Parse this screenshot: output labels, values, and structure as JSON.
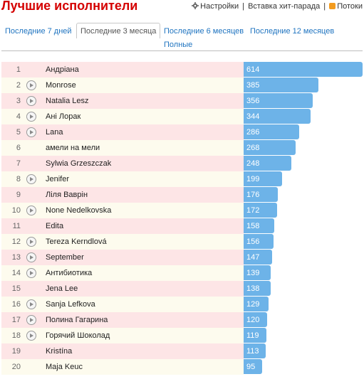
{
  "header": {
    "title": "Лучшие исполнители",
    "settings_label": "Настройки",
    "embed_label": "Вставка хит-парада",
    "feeds_label": "Потоки",
    "separator": "|"
  },
  "tabs": [
    {
      "label": "Последние 7 дней",
      "active": false
    },
    {
      "label": "Последние 3 месяца",
      "active": true
    },
    {
      "label": "Последние 6 месяцев",
      "active": false
    },
    {
      "label": "Последние 12 месяцев",
      "active": false
    },
    {
      "label": "Полные",
      "active": false
    }
  ],
  "colors": {
    "title": "#d40000",
    "link": "#1f74c0",
    "bar": "#6db3e8",
    "row_odd": "#fde5e6",
    "row_even": "#fdfbee"
  },
  "chart_data": {
    "type": "bar",
    "orientation": "horizontal",
    "categories": [
      "Андріана",
      "Monrose",
      "Natalia Lesz",
      "Ані Лорак",
      "Lana",
      "амели на мели",
      "Sylwia Grzeszczak",
      "Jenifer",
      "Ліля Ваврін",
      "None Nedelkovska",
      "Edita",
      "Tereza Kerndlová",
      "September",
      "Антибиотика",
      "Jena Lee",
      "Sanja Lefkova",
      "Полина Гагарина",
      "Горячий Шоколад",
      "Kristína",
      "Maja Keuc"
    ],
    "ranks": [
      "1",
      "2",
      "3",
      "4",
      "5",
      "6",
      "7",
      "8",
      "9",
      "10",
      "11",
      "12",
      "13",
      "14",
      "15",
      "16",
      "17",
      "18",
      "19",
      "20"
    ],
    "values": [
      614,
      385,
      356,
      344,
      286,
      268,
      248,
      199,
      176,
      172,
      158,
      156,
      147,
      139,
      138,
      129,
      120,
      119,
      113,
      95
    ],
    "playable": [
      false,
      true,
      true,
      true,
      true,
      false,
      false,
      true,
      false,
      true,
      false,
      true,
      true,
      true,
      false,
      true,
      true,
      true,
      false,
      false
    ],
    "xlim": [
      0,
      614
    ],
    "grid": false
  }
}
